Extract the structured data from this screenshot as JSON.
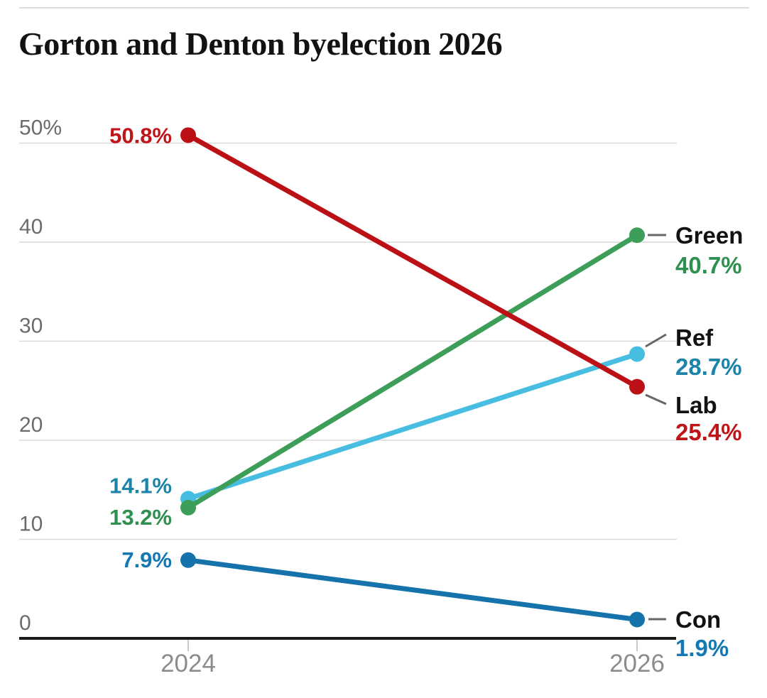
{
  "page": {
    "title": "Gorton and Denton byelection 2026"
  },
  "colors": {
    "background": "#ffffff",
    "top_rule": "#dcdcdc",
    "grid": "#d9d9d9",
    "axis": "#1a1a1a",
    "y_tick_text": "#6b6b6b",
    "x_tick_text": "#8c8c8c",
    "x_tick_mark": "#c9c9c9",
    "connector": "#666666",
    "series_name_text": "#121212",
    "title_text": "#121212"
  },
  "chart_data": {
    "type": "line",
    "subtype": "slope",
    "title": "Gorton and Denton byelection 2026",
    "x": [
      "2024",
      "2026"
    ],
    "xlabel": "",
    "ylabel": "",
    "ylim": [
      0,
      53
    ],
    "grid": true,
    "y_ticks": [
      0,
      10,
      20,
      30,
      40,
      50
    ],
    "y_tick_labels": [
      "0",
      "10",
      "20",
      "30",
      "40",
      "50%"
    ],
    "legend_position": "right-inline",
    "series": [
      {
        "name": "Ref",
        "values": [
          14.1,
          28.7
        ],
        "point_labels": [
          "14.1%",
          "28.7%"
        ],
        "line_color": "#48bde2",
        "text_color": "#1b84a8"
      },
      {
        "name": "Green",
        "values": [
          13.2,
          40.7
        ],
        "point_labels": [
          "13.2%",
          "40.7%"
        ],
        "line_color": "#3c9e58",
        "text_color": "#2e8f4e"
      },
      {
        "name": "Lab",
        "values": [
          50.8,
          25.4
        ],
        "point_labels": [
          "50.8%",
          "25.4%"
        ],
        "line_color": "#bb1016",
        "text_color": "#c01518"
      },
      {
        "name": "Con",
        "values": [
          7.9,
          1.9
        ],
        "point_labels": [
          "7.9%",
          "1.9%"
        ],
        "line_color": "#1572aa",
        "text_color": "#1478b2"
      }
    ]
  }
}
